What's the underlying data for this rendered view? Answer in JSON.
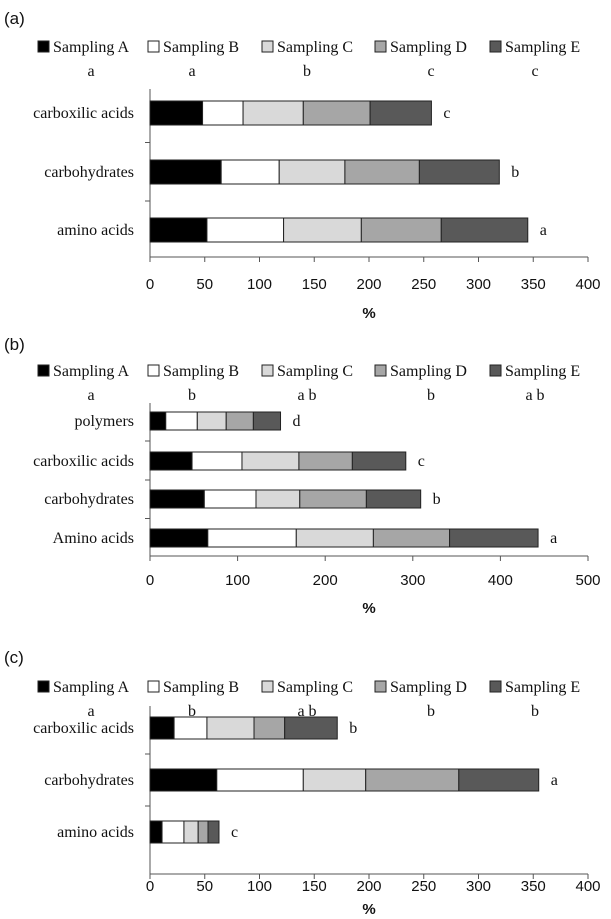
{
  "legend_labels": [
    "Sampling A",
    "Sampling B",
    "Sampling C",
    "Sampling D",
    "Sampling E"
  ],
  "colors": {
    "Sampling A": "#000000",
    "Sampling B": "#ffffff",
    "Sampling C": "#d9d9d9",
    "Sampling D": "#a6a6a6",
    "Sampling E": "#595959",
    "stroke": "#222222"
  },
  "x_axis_title": "%",
  "chart_data": [
    {
      "type": "bar",
      "orientation": "horizontal",
      "stacked": true,
      "panel": "(a)",
      "sampling_letters": [
        "a",
        "a",
        "b",
        "c",
        "c"
      ],
      "categories": [
        "carboxilic acids",
        "carbohydrates",
        "amino acids"
      ],
      "series": [
        {
          "name": "Sampling A",
          "values": [
            48,
            65,
            52
          ]
        },
        {
          "name": "Sampling B",
          "values": [
            37,
            53,
            70
          ]
        },
        {
          "name": "Sampling C",
          "values": [
            55,
            60,
            71
          ]
        },
        {
          "name": "Sampling D",
          "values": [
            61,
            68,
            73
          ]
        },
        {
          "name": "Sampling E",
          "values": [
            56,
            73,
            79
          ]
        }
      ],
      "bar_letters": [
        "c",
        "b",
        "a"
      ],
      "xlabel": "%",
      "xlim": [
        0,
        400
      ],
      "xticks": [
        0,
        50,
        100,
        150,
        200,
        250,
        300,
        350,
        400
      ],
      "grid": false,
      "legend": "top"
    },
    {
      "type": "bar",
      "orientation": "horizontal",
      "stacked": true,
      "panel": "(b)",
      "sampling_letters": [
        "a",
        "b",
        "a b",
        "b",
        "a b"
      ],
      "categories": [
        "polymers",
        "carboxilic acids",
        "carbohydrates",
        "Amino acids"
      ],
      "series": [
        {
          "name": "Sampling A",
          "values": [
            18,
            48,
            62,
            66
          ]
        },
        {
          "name": "Sampling B",
          "values": [
            36,
            57,
            59,
            101
          ]
        },
        {
          "name": "Sampling C",
          "values": [
            33,
            65,
            50,
            88
          ]
        },
        {
          "name": "Sampling D",
          "values": [
            31,
            61,
            76,
            87
          ]
        },
        {
          "name": "Sampling E",
          "values": [
            31,
            61,
            62,
            101
          ]
        }
      ],
      "bar_letters": [
        "d",
        "c",
        "b",
        "a"
      ],
      "xlabel": "%",
      "xlim": [
        0,
        500
      ],
      "xticks": [
        0,
        100,
        200,
        300,
        400,
        500
      ],
      "grid": false,
      "legend": "top"
    },
    {
      "type": "bar",
      "orientation": "horizontal",
      "stacked": true,
      "panel": "(c)",
      "sampling_letters": [
        "a",
        "b",
        "a b",
        "b",
        "b"
      ],
      "categories": [
        "carboxilic acids",
        "carbohydrates",
        "amino acids"
      ],
      "series": [
        {
          "name": "Sampling A",
          "values": [
            22,
            61,
            11
          ]
        },
        {
          "name": "Sampling B",
          "values": [
            30,
            79,
            20
          ]
        },
        {
          "name": "Sampling C",
          "values": [
            43,
            57,
            13
          ]
        },
        {
          "name": "Sampling D",
          "values": [
            28,
            85,
            9
          ]
        },
        {
          "name": "Sampling E",
          "values": [
            48,
            73,
            10
          ]
        }
      ],
      "bar_letters": [
        "b",
        "a",
        "c"
      ],
      "xlabel": "%",
      "xlim": [
        0,
        400
      ],
      "xticks": [
        0,
        50,
        100,
        150,
        200,
        250,
        300,
        350,
        400
      ],
      "grid": false,
      "legend": "top"
    }
  ]
}
